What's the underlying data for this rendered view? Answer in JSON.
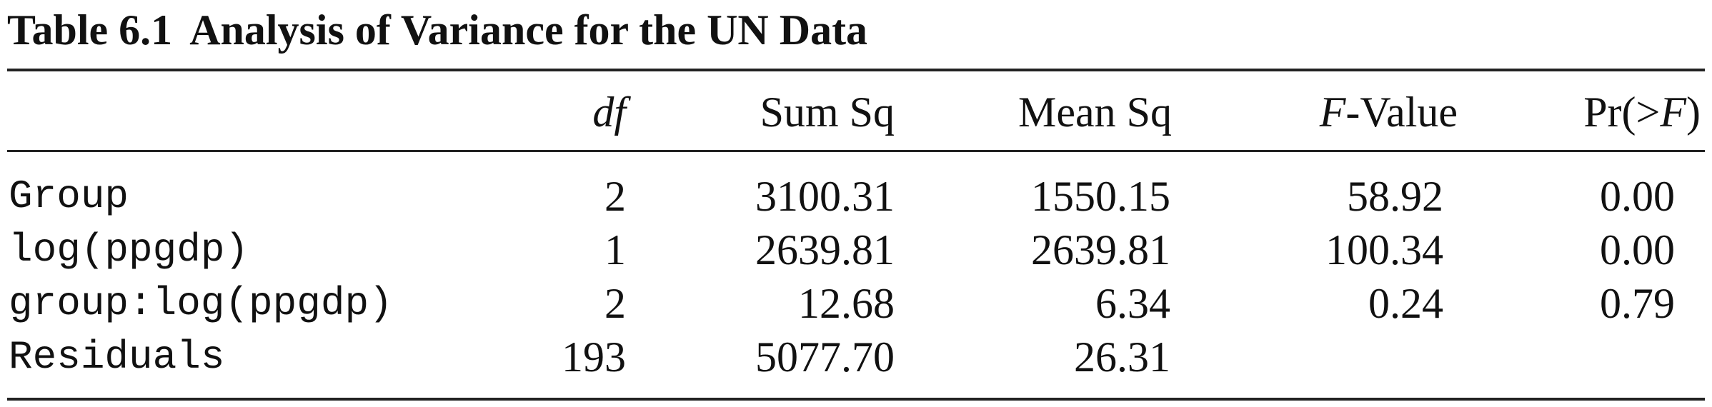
{
  "caption": {
    "number": "Table 6.1",
    "title": "Analysis of Variance for the UN Data"
  },
  "table": {
    "headers": {
      "df": "df",
      "sum_sq": "Sum Sq",
      "mean_sq": "Mean Sq",
      "f_value_italic": "F",
      "f_value_rest": "-Value",
      "pr_prefix": "Pr(>",
      "pr_italic": "F",
      "pr_suffix": ")"
    },
    "rows": [
      {
        "term": "Group",
        "df": "2",
        "sum_sq": "3100.31",
        "mean_sq": "1550.15",
        "f_value": "58.92",
        "pr": "0.00"
      },
      {
        "term": "log(ppgdp)",
        "df": "1",
        "sum_sq": "2639.81",
        "mean_sq": "2639.81",
        "f_value": "100.34",
        "pr": "0.00"
      },
      {
        "term": "group:log(ppgdp)",
        "df": "2",
        "sum_sq": "12.68",
        "mean_sq": "6.34",
        "f_value": "0.24",
        "pr": "0.79"
      },
      {
        "term": "Residuals",
        "df": "193",
        "sum_sq": "5077.70",
        "mean_sq": "26.31",
        "f_value": "",
        "pr": ""
      }
    ]
  }
}
